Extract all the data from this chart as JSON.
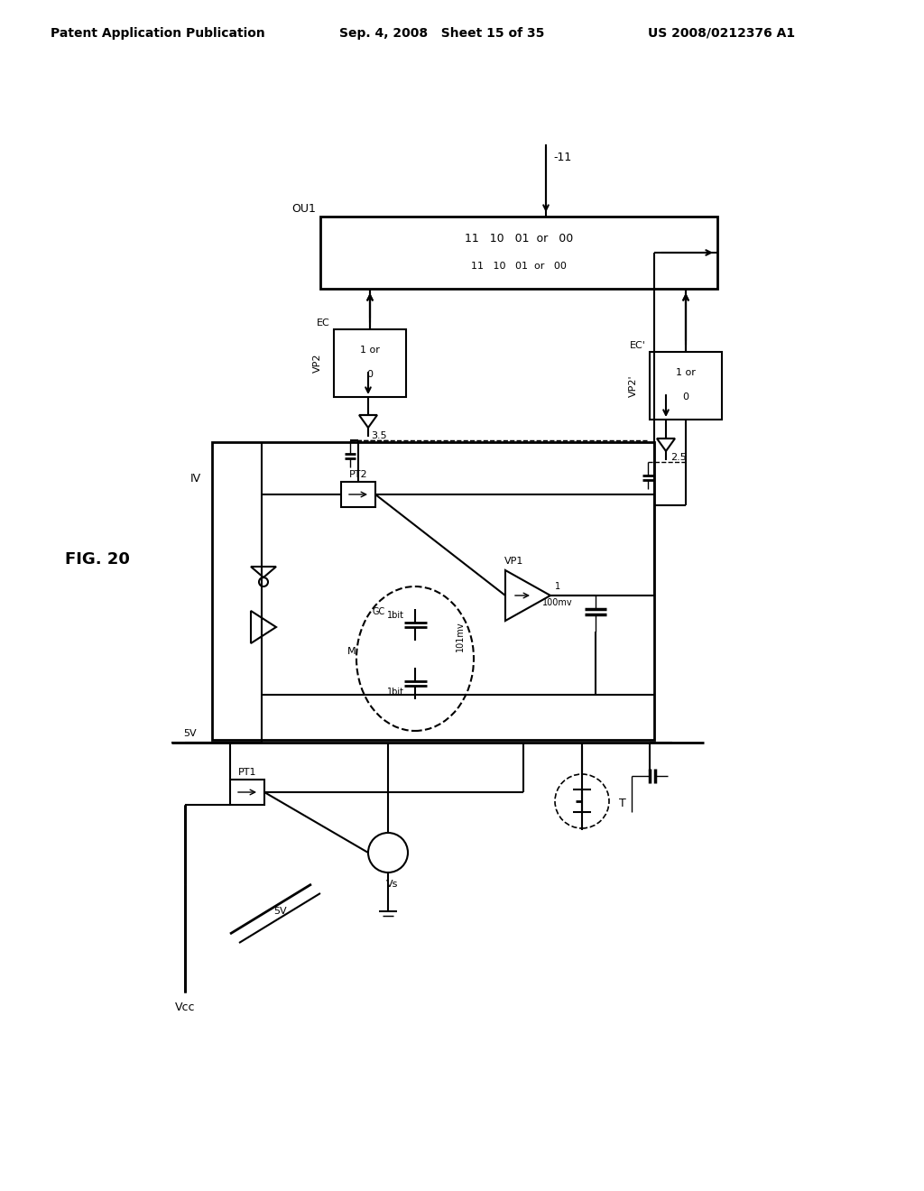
{
  "title_left": "Patent Application Publication",
  "title_mid": "Sep. 4, 2008   Sheet 15 of 35",
  "title_right": "US 2008/0212376 A1",
  "fig_label": "FIG. 20",
  "bg_color": "#ffffff",
  "line_color": "#000000"
}
